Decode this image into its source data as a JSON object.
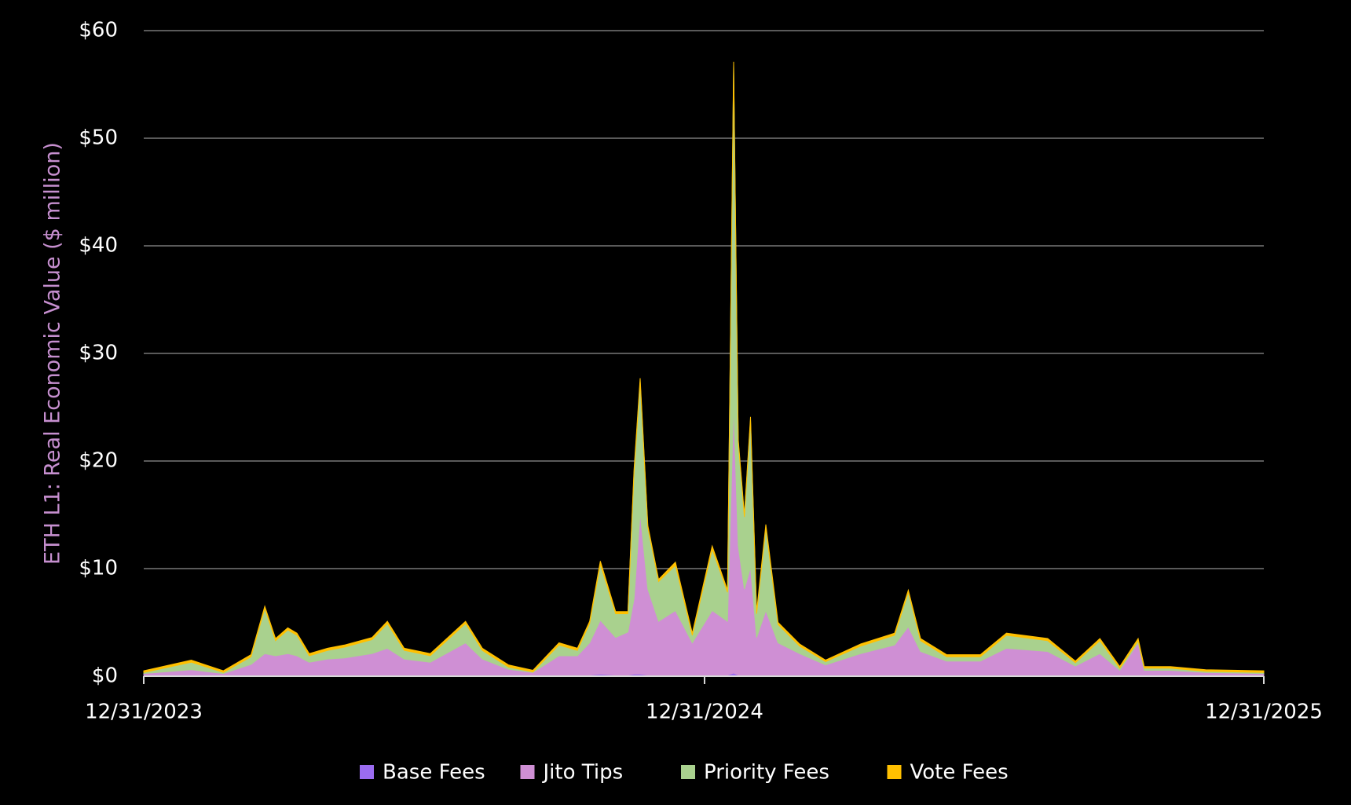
{
  "chart_data": {
    "type": "stacked-area",
    "y_label": "ETH L1: Real Economic Value ($ million)",
    "x": [
      "2023-12-31",
      "2024-01-31",
      "2024-02-21",
      "2024-03-10",
      "2024-03-19",
      "2024-03-26",
      "2024-04-03",
      "2024-04-09",
      "2024-04-17",
      "2024-04-29",
      "2024-05-10",
      "2024-05-28",
      "2024-06-07",
      "2024-06-18",
      "2024-07-05",
      "2024-07-28",
      "2024-08-08",
      "2024-08-25",
      "2024-09-10",
      "2024-09-27",
      "2024-10-09",
      "2024-10-17",
      "2024-10-24",
      "2024-11-03",
      "2024-11-11",
      "2024-11-15",
      "2024-11-19",
      "2024-11-24",
      "2024-12-01",
      "2024-12-12",
      "2024-12-23",
      "2025-01-05",
      "2025-01-15",
      "2025-01-19",
      "2025-01-22",
      "2025-01-26",
      "2025-01-30",
      "2025-02-03",
      "2025-02-09",
      "2025-02-17",
      "2025-03-03",
      "2025-03-20",
      "2025-04-12",
      "2025-05-04",
      "2025-05-13",
      "2025-05-21",
      "2025-06-07",
      "2025-06-29",
      "2025-07-16",
      "2025-08-12",
      "2025-08-30",
      "2025-09-15",
      "2025-09-28",
      "2025-10-10",
      "2025-10-14",
      "2025-10-31",
      "2025-11-23",
      "2025-12-31"
    ],
    "series": [
      {
        "name": "Base Fees",
        "color": "#9b6cf0",
        "values": [
          0.05,
          0.1,
          0.05,
          0.1,
          0.1,
          0.1,
          0.1,
          0.1,
          0.1,
          0.1,
          0.1,
          0.1,
          0.1,
          0.1,
          0.1,
          0.1,
          0.1,
          0.05,
          0.05,
          0.1,
          0.1,
          0.1,
          0.2,
          0.1,
          0.1,
          0.2,
          0.2,
          0.1,
          0.1,
          0.1,
          0.1,
          0.1,
          0.1,
          0.3,
          0.1,
          0.1,
          0.1,
          0.1,
          0.1,
          0.1,
          0.1,
          0.05,
          0.1,
          0.1,
          0.1,
          0.1,
          0.1,
          0.1,
          0.1,
          0.1,
          0.05,
          0.1,
          0.05,
          0.1,
          0.05,
          0.05,
          0.05,
          0.05
        ]
      },
      {
        "name": "Jito Tips",
        "color": "#cf8fd4",
        "values": [
          0.2,
          0.5,
          0.2,
          1.0,
          2.0,
          1.8,
          2.0,
          1.8,
          1.2,
          1.5,
          1.6,
          2.0,
          2.5,
          1.5,
          1.2,
          3.0,
          1.5,
          0.6,
          0.3,
          1.8,
          1.8,
          3.0,
          5.0,
          3.5,
          4.0,
          7.0,
          15.0,
          8.0,
          5.0,
          6.0,
          3.0,
          6.0,
          5.0,
          25.0,
          12.0,
          8.0,
          10.0,
          3.5,
          6.0,
          3.0,
          2.0,
          1.0,
          2.0,
          2.8,
          4.5,
          2.2,
          1.3,
          1.3,
          2.5,
          2.2,
          0.9,
          2.0,
          0.5,
          3.0,
          0.5,
          0.5,
          0.3,
          0.2
        ]
      },
      {
        "name": "Priority Fees",
        "color": "#a9d18e",
        "values": [
          0.1,
          0.7,
          0.1,
          0.7,
          4.2,
          1.4,
          2.2,
          1.9,
          0.6,
          0.8,
          1.0,
          1.3,
          2.3,
          0.8,
          0.6,
          1.8,
          0.8,
          0.2,
          0.05,
          1.0,
          0.5,
          1.8,
          5.2,
          2.2,
          1.7,
          11.7,
          12.2,
          5.7,
          3.7,
          4.2,
          0.7,
          5.7,
          2.7,
          31.5,
          9.7,
          6.7,
          13.7,
          2.2,
          7.7,
          1.7,
          0.7,
          0.3,
          0.7,
          0.9,
          3.2,
          1.0,
          0.4,
          0.4,
          1.2,
          1.0,
          0.3,
          1.2,
          0.2,
          0.2,
          0.2,
          0.2,
          0.1,
          0.1
        ]
      },
      {
        "name": "Vote Fees",
        "color": "#ffc000",
        "values": [
          0.15,
          0.2,
          0.15,
          0.2,
          0.2,
          0.2,
          0.2,
          0.2,
          0.2,
          0.2,
          0.2,
          0.2,
          0.2,
          0.2,
          0.2,
          0.2,
          0.2,
          0.2,
          0.15,
          0.2,
          0.2,
          0.2,
          0.3,
          0.2,
          0.2,
          0.3,
          0.3,
          0.2,
          0.2,
          0.3,
          0.2,
          0.3,
          0.2,
          0.3,
          0.2,
          0.2,
          0.3,
          0.2,
          0.3,
          0.2,
          0.2,
          0.15,
          0.2,
          0.2,
          0.2,
          0.2,
          0.2,
          0.2,
          0.2,
          0.2,
          0.15,
          0.2,
          0.15,
          0.2,
          0.15,
          0.15,
          0.15,
          0.15
        ]
      }
    ],
    "xlim": [
      "2023-12-31",
      "2025-12-31"
    ],
    "xticks": [
      {
        "value": "2023-12-31",
        "label": "12/31/2023"
      },
      {
        "value": "2024-12-31",
        "label": "12/31/2024"
      },
      {
        "value": "2025-12-31",
        "label": "12/31/2025"
      }
    ],
    "ylim": [
      0,
      60
    ],
    "yticks": [
      {
        "value": 0,
        "label": "$0"
      },
      {
        "value": 10,
        "label": "$10"
      },
      {
        "value": 20,
        "label": "$20"
      },
      {
        "value": 30,
        "label": "$30"
      },
      {
        "value": 40,
        "label": "$40"
      },
      {
        "value": 50,
        "label": "$50"
      },
      {
        "value": 60,
        "label": "$60"
      }
    ],
    "grid": true,
    "legend": "bottom"
  }
}
